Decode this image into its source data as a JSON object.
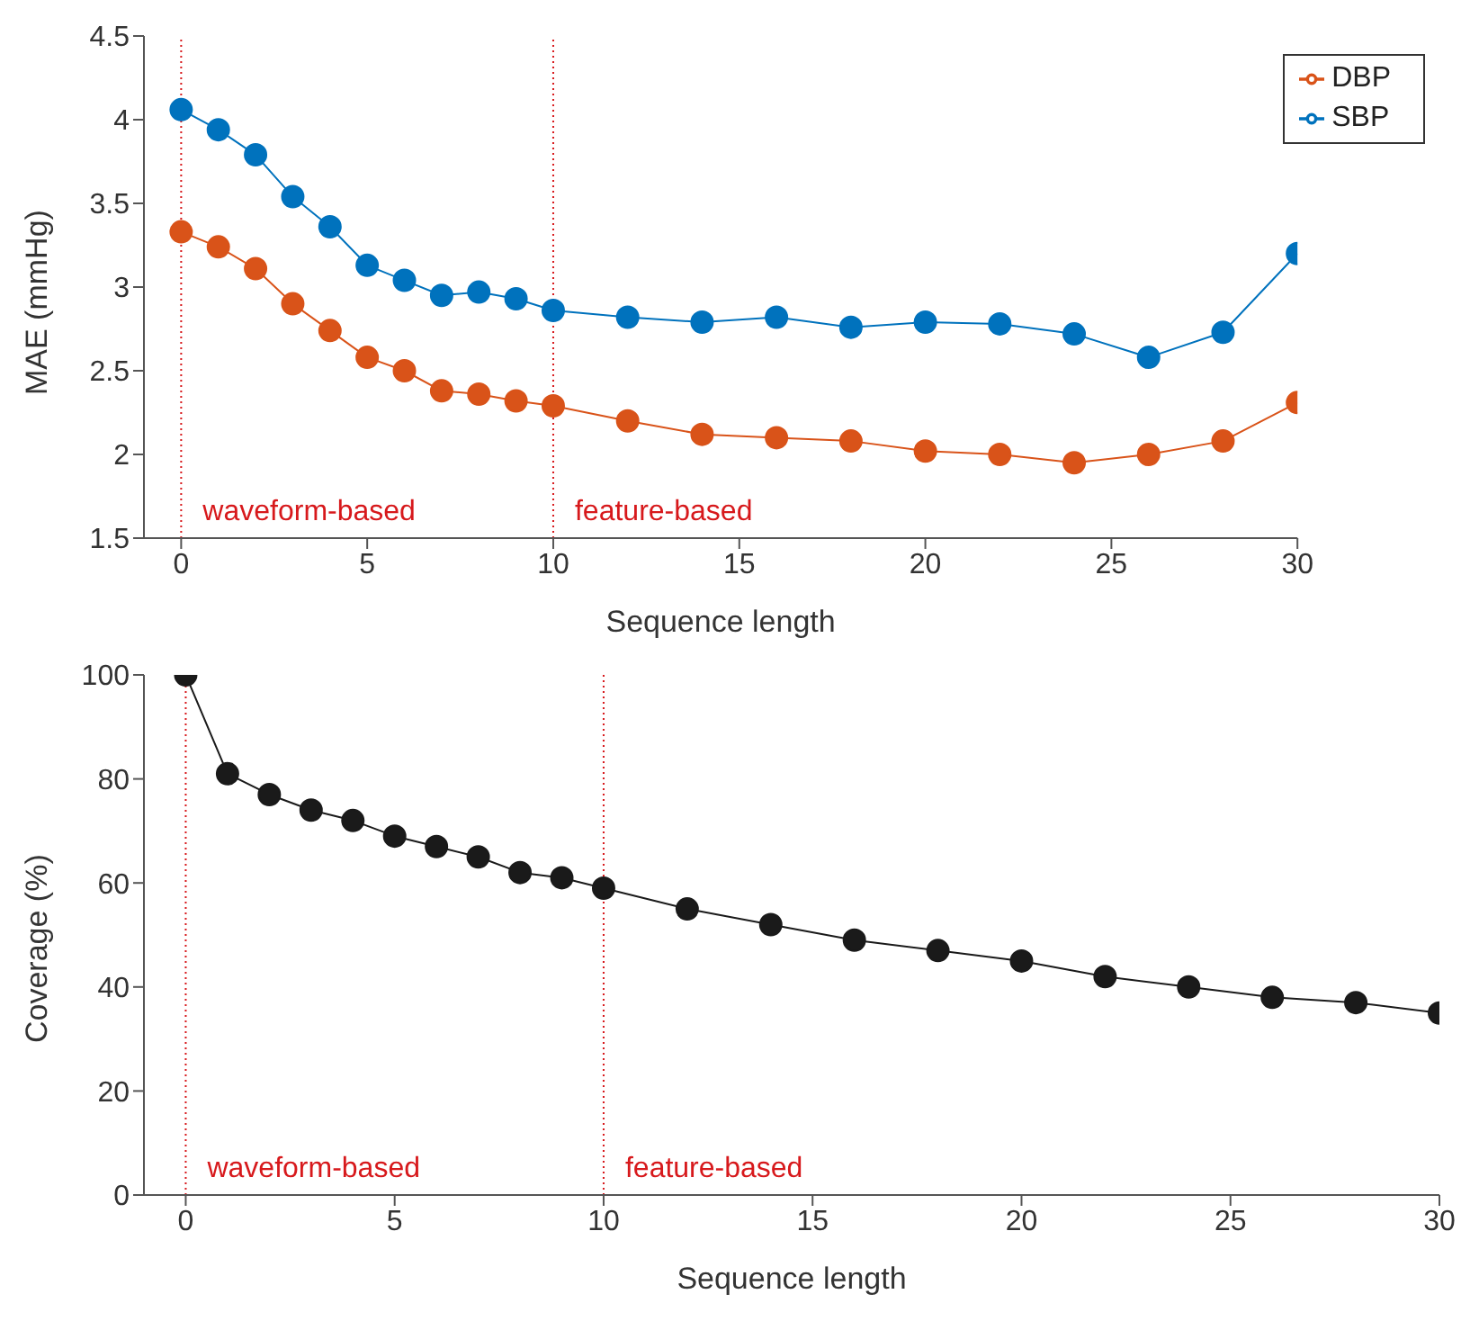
{
  "chart_data": [
    {
      "type": "line",
      "xlabel": "Sequence length",
      "ylabel": "MAE (mmHg)",
      "x": [
        0,
        1,
        2,
        3,
        4,
        5,
        6,
        7,
        8,
        9,
        10,
        12,
        14,
        16,
        18,
        20,
        22,
        24,
        26,
        28,
        30
      ],
      "series": [
        {
          "name": "SBP",
          "color": "#0072bd",
          "values": [
            4.06,
            3.94,
            3.79,
            3.54,
            3.36,
            3.13,
            3.04,
            2.95,
            2.97,
            2.93,
            2.86,
            2.82,
            2.79,
            2.82,
            2.76,
            2.79,
            2.78,
            2.72,
            2.58,
            2.73,
            3.2
          ]
        },
        {
          "name": "DBP",
          "color": "#d95319",
          "values": [
            3.33,
            3.24,
            3.11,
            2.9,
            2.74,
            2.58,
            2.5,
            2.38,
            2.36,
            2.32,
            2.29,
            2.2,
            2.12,
            2.1,
            2.08,
            2.02,
            2.0,
            1.95,
            2.0,
            2.08,
            2.31
          ]
        }
      ],
      "xlim": [
        -1,
        30
      ],
      "xticks": [
        0,
        5,
        10,
        15,
        20,
        25,
        30
      ],
      "ylim": [
        1.5,
        4.5
      ],
      "yticks": [
        1.5,
        2,
        2.5,
        3,
        3.5,
        4,
        4.5
      ],
      "ref_lines": [
        {
          "axis": "x",
          "value": 0,
          "label": "waveform-based",
          "color": "#d7191c",
          "line_style": "dotted"
        },
        {
          "axis": "x",
          "value": 10,
          "label": "feature-based",
          "color": "#d7191c",
          "line_style": "dotted"
        }
      ],
      "grid": false,
      "legend": "top right",
      "marker": "circle",
      "line_style": "solid"
    },
    {
      "type": "line",
      "xlabel": "Sequence length",
      "ylabel": "Coverage (%)",
      "x": [
        0,
        1,
        2,
        3,
        4,
        5,
        6,
        7,
        8,
        9,
        10,
        12,
        14,
        16,
        18,
        20,
        22,
        24,
        26,
        28,
        30
      ],
      "series": [
        {
          "color": "#1a1a1a",
          "values": [
            100,
            81,
            77,
            74,
            72,
            69,
            67,
            65,
            62,
            61,
            59,
            55,
            52,
            49,
            47,
            45,
            42,
            40,
            38,
            37,
            35
          ]
        }
      ],
      "xlim": [
        -1,
        30
      ],
      "xticks": [
        0,
        5,
        10,
        15,
        20,
        25,
        30
      ],
      "ylim": [
        0,
        100
      ],
      "yticks": [
        0,
        20,
        40,
        60,
        80,
        100
      ],
      "ref_lines": [
        {
          "axis": "x",
          "value": 0,
          "label": "waveform-based",
          "color": "#d7191c",
          "line_style": "dotted"
        },
        {
          "axis": "x",
          "value": 10,
          "label": "feature-based",
          "color": "#d7191c",
          "line_style": "dotted"
        }
      ],
      "grid": false,
      "legend": false,
      "marker": "circle",
      "line_style": "solid"
    }
  ]
}
